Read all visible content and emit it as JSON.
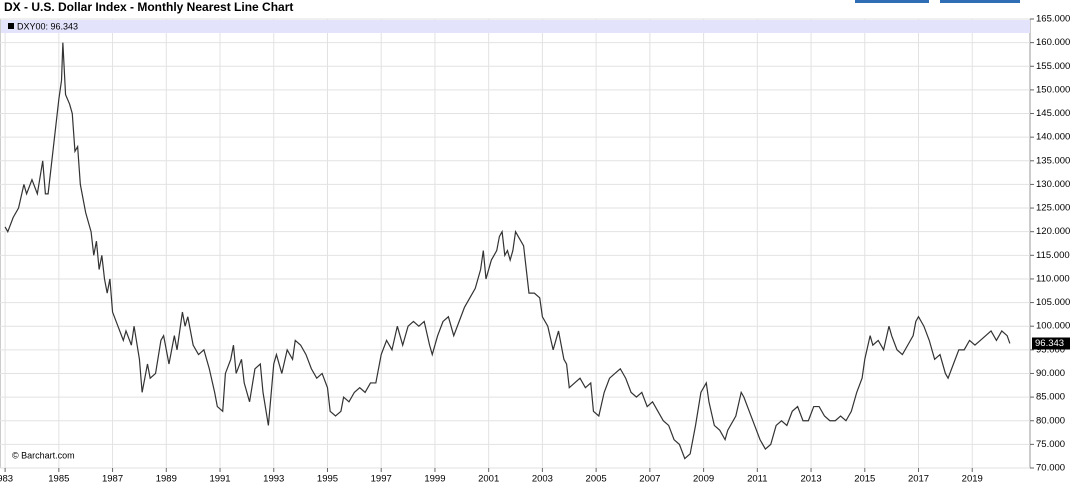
{
  "chart_data": {
    "type": "line",
    "title": "DX - U.S. Dollar Index - Monthly Nearest Line Chart",
    "legend_label": "DXY00: 96.343",
    "last_value_label": "96.343",
    "credit": "© Barchart.com",
    "color": "#333333",
    "grid": true,
    "xlim": [
      1982.81,
      2021.15
    ],
    "ylim": [
      70,
      165
    ],
    "xticks": [
      {
        "value": 1983,
        "label": "983"
      },
      1985,
      1987,
      1989,
      1991,
      1993,
      1995,
      1997,
      1999,
      2001,
      2003,
      2005,
      2007,
      2009,
      2011,
      2013,
      2015,
      2017,
      2019
    ],
    "yticks": [
      {
        "value": 70,
        "label": "70.000"
      },
      {
        "value": 75,
        "label": "75.000"
      },
      {
        "value": 80,
        "label": "80.000"
      },
      {
        "value": 85,
        "label": "85.000"
      },
      {
        "value": 90,
        "label": "90.000"
      },
      {
        "value": 95,
        "label": "95.000"
      },
      {
        "value": 100,
        "label": "100.000"
      },
      {
        "value": 105,
        "label": "105.000"
      },
      {
        "value": 110,
        "label": "110.000"
      },
      {
        "value": 115,
        "label": "115.000"
      },
      {
        "value": 120,
        "label": "120.000"
      },
      {
        "value": 125,
        "label": "125.000"
      },
      {
        "value": 130,
        "label": "130.000"
      },
      {
        "value": 135,
        "label": "135.000"
      },
      {
        "value": 140,
        "label": "140.000"
      },
      {
        "value": 145,
        "label": "145.000"
      },
      {
        "value": 150,
        "label": "150.000"
      },
      {
        "value": 155,
        "label": "155.000"
      },
      {
        "value": 160,
        "label": "160.000"
      },
      {
        "value": 165,
        "label": "165.000"
      }
    ],
    "x": [
      1983.0,
      1983.1,
      1983.3,
      1983.5,
      1983.7,
      1983.8,
      1984.0,
      1984.2,
      1984.4,
      1984.5,
      1984.6,
      1984.8,
      1985.0,
      1985.1,
      1985.15,
      1985.25,
      1985.4,
      1985.5,
      1985.6,
      1985.7,
      1985.8,
      1985.9,
      1986.0,
      1986.2,
      1986.3,
      1986.4,
      1986.5,
      1986.6,
      1986.7,
      1986.8,
      1986.9,
      1987.0,
      1987.2,
      1987.4,
      1987.5,
      1987.7,
      1987.8,
      1988.0,
      1988.1,
      1988.3,
      1988.4,
      1988.6,
      1988.8,
      1988.9,
      1989.1,
      1989.3,
      1989.4,
      1989.6,
      1989.7,
      1989.8,
      1990.0,
      1990.2,
      1990.4,
      1990.6,
      1990.8,
      1990.9,
      1991.1,
      1991.2,
      1991.4,
      1991.5,
      1991.6,
      1991.8,
      1991.9,
      1992.1,
      1992.3,
      1992.5,
      1992.6,
      1992.8,
      1993.0,
      1993.1,
      1993.3,
      1993.5,
      1993.7,
      1993.8,
      1994.0,
      1994.2,
      1994.4,
      1994.6,
      1994.8,
      1995.0,
      1995.1,
      1995.3,
      1995.5,
      1995.6,
      1995.8,
      1996.0,
      1996.2,
      1996.4,
      1996.6,
      1996.8,
      1997.0,
      1997.2,
      1997.4,
      1997.6,
      1997.8,
      1998.0,
      1998.2,
      1998.4,
      1998.6,
      1998.8,
      1998.9,
      1999.1,
      1999.3,
      1999.5,
      1999.7,
      1999.9,
      2000.1,
      2000.3,
      2000.5,
      2000.7,
      2000.8,
      2000.9,
      2001.1,
      2001.3,
      2001.4,
      2001.5,
      2001.6,
      2001.7,
      2001.8,
      2001.9,
      2002.0,
      2002.1,
      2002.3,
      2002.5,
      2002.7,
      2002.9,
      2003.0,
      2003.2,
      2003.4,
      2003.6,
      2003.8,
      2003.9,
      2004.0,
      2004.2,
      2004.4,
      2004.6,
      2004.8,
      2004.9,
      2005.1,
      2005.3,
      2005.5,
      2005.7,
      2005.9,
      2006.1,
      2006.3,
      2006.5,
      2006.7,
      2006.9,
      2007.1,
      2007.3,
      2007.5,
      2007.7,
      2007.9,
      2008.1,
      2008.3,
      2008.5,
      2008.7,
      2008.9,
      2009.1,
      2009.2,
      2009.4,
      2009.6,
      2009.8,
      2009.9,
      2010.2,
      2010.4,
      2010.5,
      2010.7,
      2010.9,
      2011.1,
      2011.3,
      2011.5,
      2011.7,
      2011.9,
      2012.1,
      2012.3,
      2012.5,
      2012.7,
      2012.9,
      2013.1,
      2013.3,
      2013.5,
      2013.7,
      2013.9,
      2014.1,
      2014.3,
      2014.5,
      2014.7,
      2014.9,
      2015.0,
      2015.2,
      2015.3,
      2015.5,
      2015.7,
      2015.9,
      2016.0,
      2016.2,
      2016.4,
      2016.6,
      2016.8,
      2016.9,
      2017.0,
      2017.2,
      2017.4,
      2017.6,
      2017.8,
      2018.0,
      2018.1,
      2018.3,
      2018.5,
      2018.7,
      2018.9,
      2019.1,
      2019.3,
      2019.5,
      2019.7,
      2019.9,
      2020.1,
      2020.3,
      2020.4
    ],
    "values": [
      121,
      120,
      123,
      125,
      130,
      128,
      131,
      128,
      135,
      128,
      128,
      138,
      148,
      152,
      160,
      149,
      147,
      145,
      137,
      138,
      130,
      127,
      124,
      120,
      115,
      118,
      112,
      115,
      110,
      107,
      110,
      103,
      100,
      97,
      99,
      96,
      100,
      93,
      86,
      92,
      89,
      90,
      97,
      98,
      92,
      98,
      95,
      103,
      100,
      102,
      96,
      94,
      95,
      91,
      86,
      83,
      82,
      90,
      93,
      96,
      90,
      93,
      88,
      84,
      91,
      92,
      86,
      79,
      92,
      94,
      90,
      95,
      93,
      97,
      96,
      94,
      91,
      89,
      90,
      87,
      82,
      81,
      82,
      85,
      84,
      86,
      87,
      86,
      88,
      88,
      94,
      97,
      95,
      100,
      96,
      100,
      101,
      100,
      101,
      96,
      94,
      98,
      101,
      102,
      98,
      101,
      104,
      106,
      108,
      112,
      116,
      110,
      114,
      116,
      119,
      120,
      115,
      116,
      114,
      116,
      120,
      119,
      117,
      107,
      107,
      106,
      102,
      100,
      95,
      99,
      93,
      92,
      87,
      88,
      89,
      87,
      88,
      82,
      81,
      86,
      89,
      90,
      91,
      89,
      86,
      85,
      86,
      83,
      84,
      82,
      80,
      79,
      76,
      75,
      72,
      73,
      79,
      86,
      88,
      84,
      79,
      78,
      76,
      78,
      81,
      86,
      85,
      82,
      79,
      76,
      74,
      75,
      79,
      80,
      79,
      82,
      83,
      80,
      80,
      83,
      83,
      81,
      80,
      80,
      81,
      80,
      82,
      86,
      89,
      93,
      98,
      96,
      97,
      95,
      100,
      98,
      95,
      94,
      96,
      98,
      101,
      102,
      100,
      97,
      93,
      94,
      90,
      89,
      92,
      95,
      95,
      97,
      96,
      97,
      98,
      99,
      97,
      99,
      98,
      96.343
    ]
  }
}
